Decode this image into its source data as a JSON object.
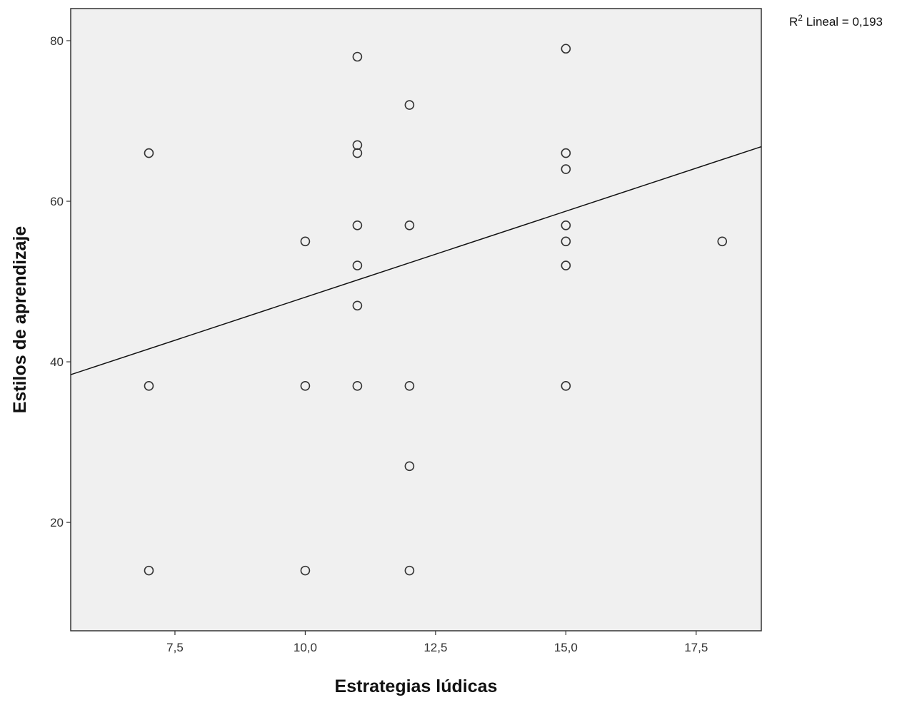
{
  "chart_data": {
    "type": "scatter",
    "title": "",
    "xlabel": "Estrategias lúdicas",
    "ylabel": "Estilos de aprendizaje",
    "xlim": [
      5.5,
      18.75
    ],
    "ylim": [
      6.5,
      84
    ],
    "xticks": [
      7.5,
      10.0,
      12.5,
      15.0,
      17.5
    ],
    "xtick_labels": [
      "7,5",
      "10,0",
      "12,5",
      "15,0",
      "17,5"
    ],
    "yticks": [
      20,
      40,
      60,
      80
    ],
    "ytick_labels": [
      "20",
      "40",
      "60",
      "80"
    ],
    "grid": false,
    "plot_background": "#f0f0f0",
    "marker_color": "#333333",
    "line_color": "#111111",
    "points": [
      {
        "x": 7,
        "y": 66
      },
      {
        "x": 7,
        "y": 37
      },
      {
        "x": 7,
        "y": 14
      },
      {
        "x": 10,
        "y": 55
      },
      {
        "x": 10,
        "y": 37
      },
      {
        "x": 10,
        "y": 14
      },
      {
        "x": 11,
        "y": 78
      },
      {
        "x": 11,
        "y": 67
      },
      {
        "x": 11,
        "y": 66
      },
      {
        "x": 11,
        "y": 57
      },
      {
        "x": 11,
        "y": 52
      },
      {
        "x": 11,
        "y": 47
      },
      {
        "x": 11,
        "y": 37
      },
      {
        "x": 12,
        "y": 72
      },
      {
        "x": 12,
        "y": 57
      },
      {
        "x": 12,
        "y": 37
      },
      {
        "x": 12,
        "y": 27
      },
      {
        "x": 12,
        "y": 14
      },
      {
        "x": 15,
        "y": 79
      },
      {
        "x": 15,
        "y": 66
      },
      {
        "x": 15,
        "y": 64
      },
      {
        "x": 15,
        "y": 57
      },
      {
        "x": 15,
        "y": 55
      },
      {
        "x": 15,
        "y": 52
      },
      {
        "x": 15,
        "y": 37
      },
      {
        "x": 18,
        "y": 55
      }
    ],
    "fit_line": {
      "type": "linear",
      "start": {
        "x": 5.5,
        "y": 38.4
      },
      "end": {
        "x": 18.75,
        "y": 66.8
      }
    },
    "annotation": {
      "r2_prefix": "R",
      "r2_superscript": "2",
      "r2_text": " Lineal = 0,193"
    }
  }
}
